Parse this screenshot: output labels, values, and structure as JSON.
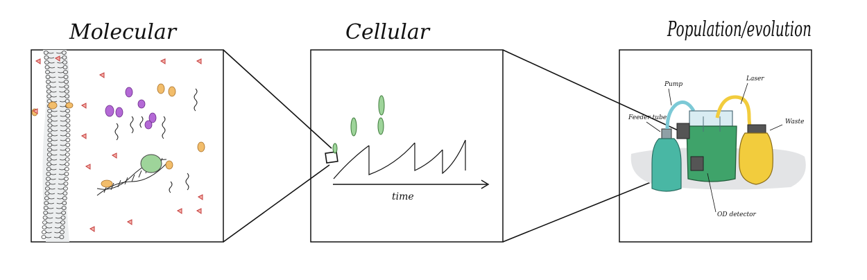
{
  "panels": {
    "molecular": {
      "title": "Molecular"
    },
    "cellular": {
      "title": "Cellular",
      "axis_label": "time"
    },
    "population": {
      "title": "Population/evolution",
      "labels": {
        "pump": "Pump",
        "feeder": "Feeder tube",
        "laser": "Laser",
        "waste": "Waste",
        "od": "OD detector"
      }
    }
  },
  "colors": {
    "outline": "#111111",
    "cell_green": "#9ed49a",
    "protein_purple": "#b469d6",
    "protein_orange": "#f2bd6b",
    "chemical_red": "#e25a5a",
    "culture_green": "#3fa36a",
    "waste_yellow": "#f2cc3d",
    "media_teal": "#49b7a4",
    "tube_blue": "#7cc9d6"
  }
}
